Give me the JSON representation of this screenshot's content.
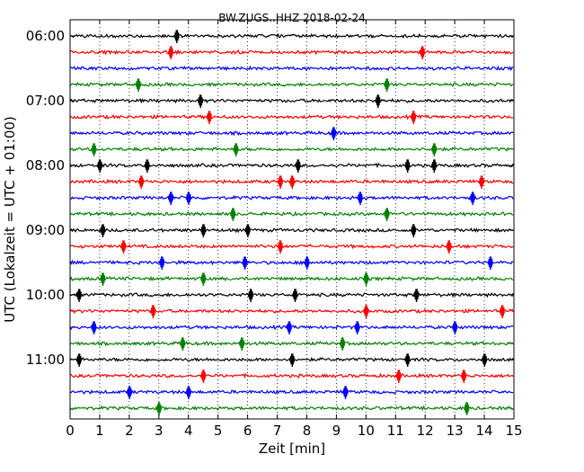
{
  "chart_data": {
    "type": "line",
    "title": "BW.ZUGS..HHZ 2018-02-24",
    "xlabel": "Zeit  [min]",
    "ylabel": "UTC (Lokalzeit = UTC + 01:00)",
    "xlim": [
      0,
      15
    ],
    "x_ticks": [
      "0",
      "1",
      "2",
      "3",
      "4",
      "5",
      "6",
      "7",
      "8",
      "9",
      "10",
      "11",
      "12",
      "13",
      "14",
      "15"
    ],
    "y_ticks": [
      "06:00",
      "07:00",
      "08:00",
      "09:00",
      "10:00",
      "11:00"
    ],
    "grid": "vertical-dotted",
    "row_minutes": 15,
    "colors": [
      "#000000",
      "#ff0000",
      "#0000ff",
      "#008000"
    ],
    "series": [
      {
        "values": [
          3.6
        ]
      },
      {
        "values": [
          3.4,
          11.9
        ]
      },
      {
        "values": []
      },
      {
        "values": [
          2.3,
          10.7
        ]
      },
      {
        "values": [
          4.4,
          10.4
        ]
      },
      {
        "values": [
          4.7,
          11.6
        ]
      },
      {
        "values": [
          8.9
        ]
      },
      {
        "values": [
          5.6,
          0.8,
          12.3
        ]
      },
      {
        "values": [
          1.0,
          2.6,
          7.7,
          11.4,
          12.3
        ]
      },
      {
        "values": [
          2.4,
          7.1,
          7.5,
          13.9
        ]
      },
      {
        "values": [
          3.4,
          4.0,
          9.8,
          13.6
        ]
      },
      {
        "values": [
          5.5,
          10.7
        ]
      },
      {
        "values": [
          1.1,
          4.5,
          6.0,
          11.6
        ]
      },
      {
        "values": [
          1.8,
          7.1,
          12.8
        ]
      },
      {
        "values": [
          3.1,
          5.9,
          8.0,
          14.2
        ]
      },
      {
        "values": [
          1.1,
          4.5,
          10.0
        ]
      },
      {
        "values": [
          0.3,
          6.1,
          7.6,
          11.7
        ]
      },
      {
        "values": [
          2.8,
          10.0,
          14.6
        ]
      },
      {
        "values": [
          0.8,
          7.4,
          9.7,
          13.0
        ]
      },
      {
        "values": [
          3.8,
          5.8,
          9.2
        ]
      },
      {
        "values": [
          0.3,
          7.5,
          11.4,
          14.0
        ]
      },
      {
        "values": [
          4.5,
          11.1,
          13.3
        ]
      },
      {
        "values": [
          2.0,
          4.0,
          9.3
        ]
      },
      {
        "values": [
          3.0,
          13.4
        ]
      }
    ]
  }
}
